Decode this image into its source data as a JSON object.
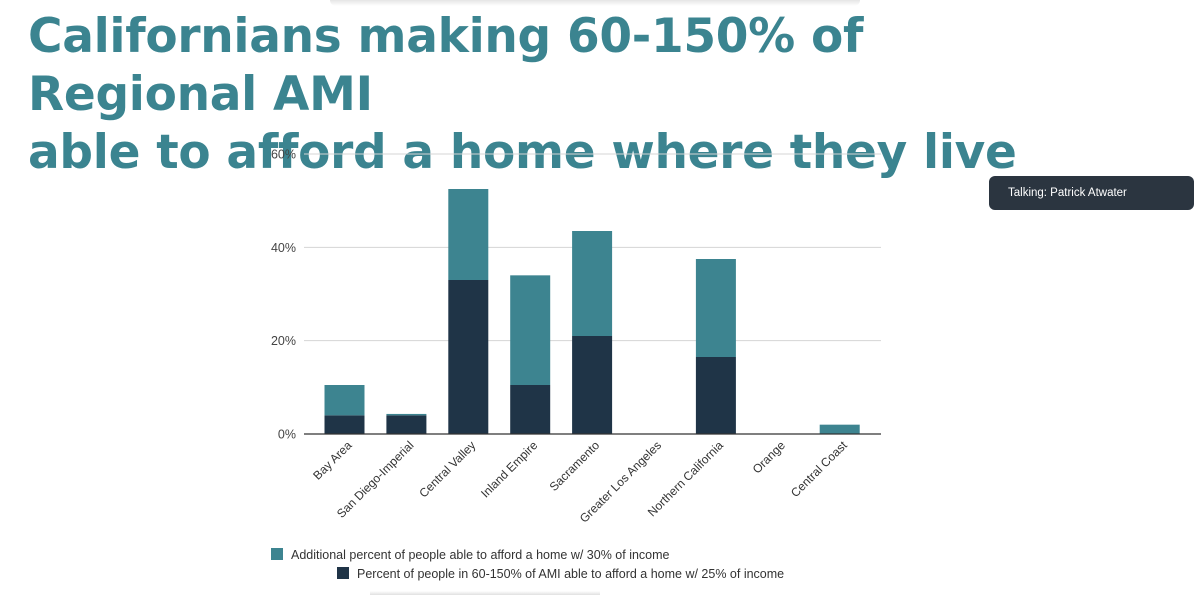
{
  "slide": {
    "title_line1": "Californians making 60-150% of Regional AMI",
    "title_line2": "able to afford a home where they live",
    "title_color": "#3b8490"
  },
  "overlay": {
    "talking": "Talking: Patrick Atwater",
    "bg_color": "#2b3540"
  },
  "chart_data": {
    "type": "bar",
    "stacked": true,
    "categories": [
      "Bay Area",
      "San Diego-Imperial",
      "Central Valley",
      "Inland Empire",
      "Sacramento",
      "Greater Los Angeles",
      "Northern California",
      "Orange",
      "Central Coast"
    ],
    "series": [
      {
        "name": "Percent of people in 60-150% of AMI able to afford a home w/ 25% of income",
        "color": "#1f3447",
        "values": [
          4,
          4,
          33,
          10.5,
          21,
          0,
          16.5,
          0,
          0
        ]
      },
      {
        "name": "Additional percent of people able to afford a home w/ 30% of income",
        "color": "#3d8490",
        "values": [
          6.5,
          0.3,
          19.5,
          23.5,
          22.5,
          0,
          21,
          0,
          2
        ]
      }
    ],
    "yticks": [
      "0%",
      "20%",
      "40%",
      "60%"
    ],
    "ylim": [
      0,
      60
    ],
    "grid": true,
    "legend_position": "bottom"
  }
}
